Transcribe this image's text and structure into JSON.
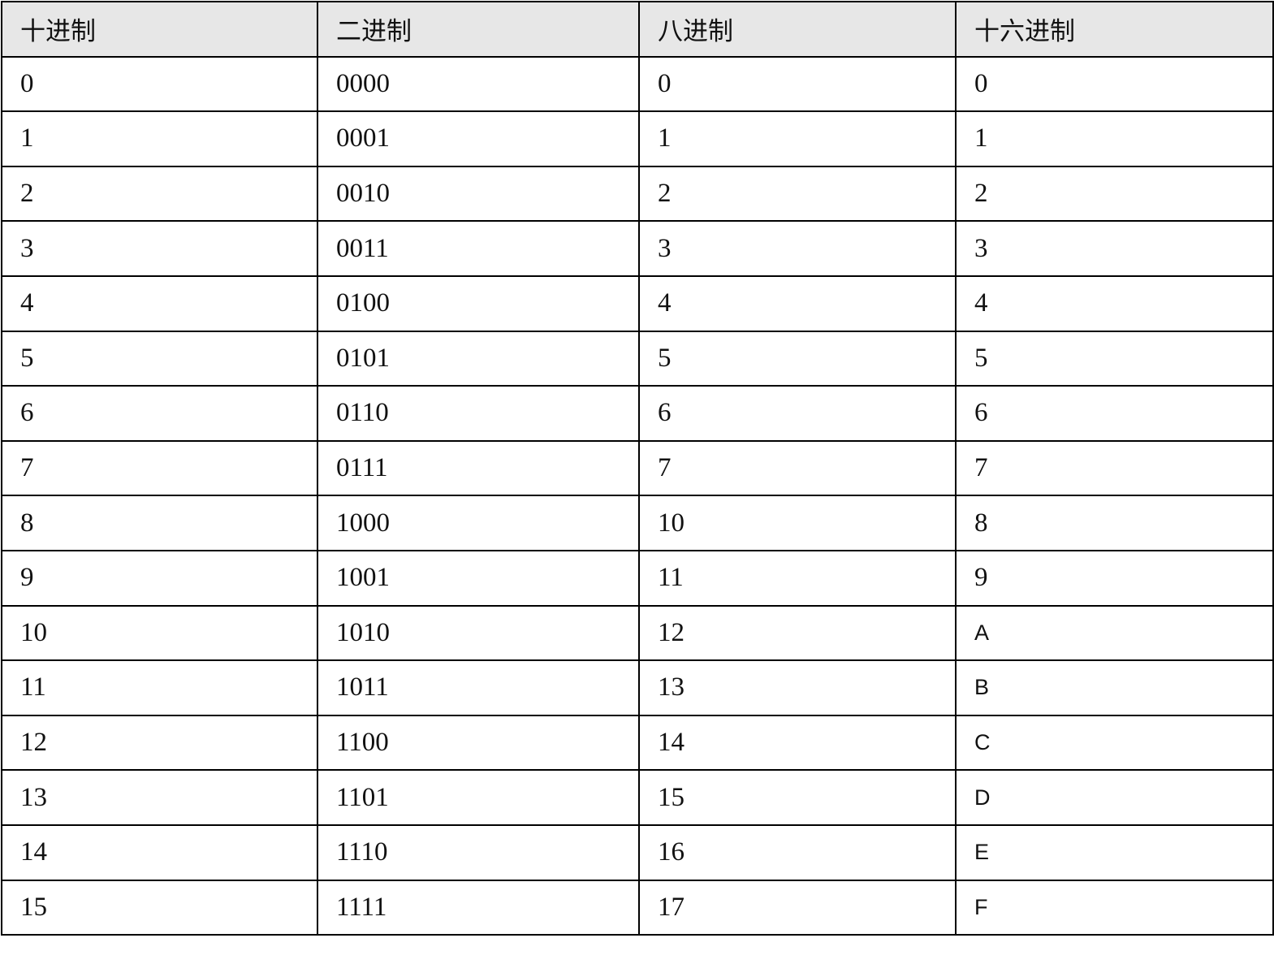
{
  "table": {
    "headers": [
      "十进制",
      "二进制",
      "八进制",
      "十六进制"
    ],
    "rows": [
      [
        "0",
        "0000",
        "0",
        "0"
      ],
      [
        "1",
        "0001",
        "1",
        "1"
      ],
      [
        "2",
        "0010",
        "2",
        "2"
      ],
      [
        "3",
        "0011",
        "3",
        "3"
      ],
      [
        "4",
        "0100",
        "4",
        "4"
      ],
      [
        "5",
        "0101",
        "5",
        "5"
      ],
      [
        "6",
        "0110",
        "6",
        "6"
      ],
      [
        "7",
        "0111",
        "7",
        "7"
      ],
      [
        "8",
        "1000",
        "10",
        "8"
      ],
      [
        "9",
        "1001",
        "11",
        "9"
      ],
      [
        "10",
        "1010",
        "12",
        "A"
      ],
      [
        "11",
        "1011",
        "13",
        "B"
      ],
      [
        "12",
        "1100",
        "14",
        "C"
      ],
      [
        "13",
        "1101",
        "15",
        "D"
      ],
      [
        "14",
        "1110",
        "16",
        "E"
      ],
      [
        "15",
        "1111",
        "17",
        "F"
      ]
    ],
    "header_bg": "#e7e7e7"
  }
}
